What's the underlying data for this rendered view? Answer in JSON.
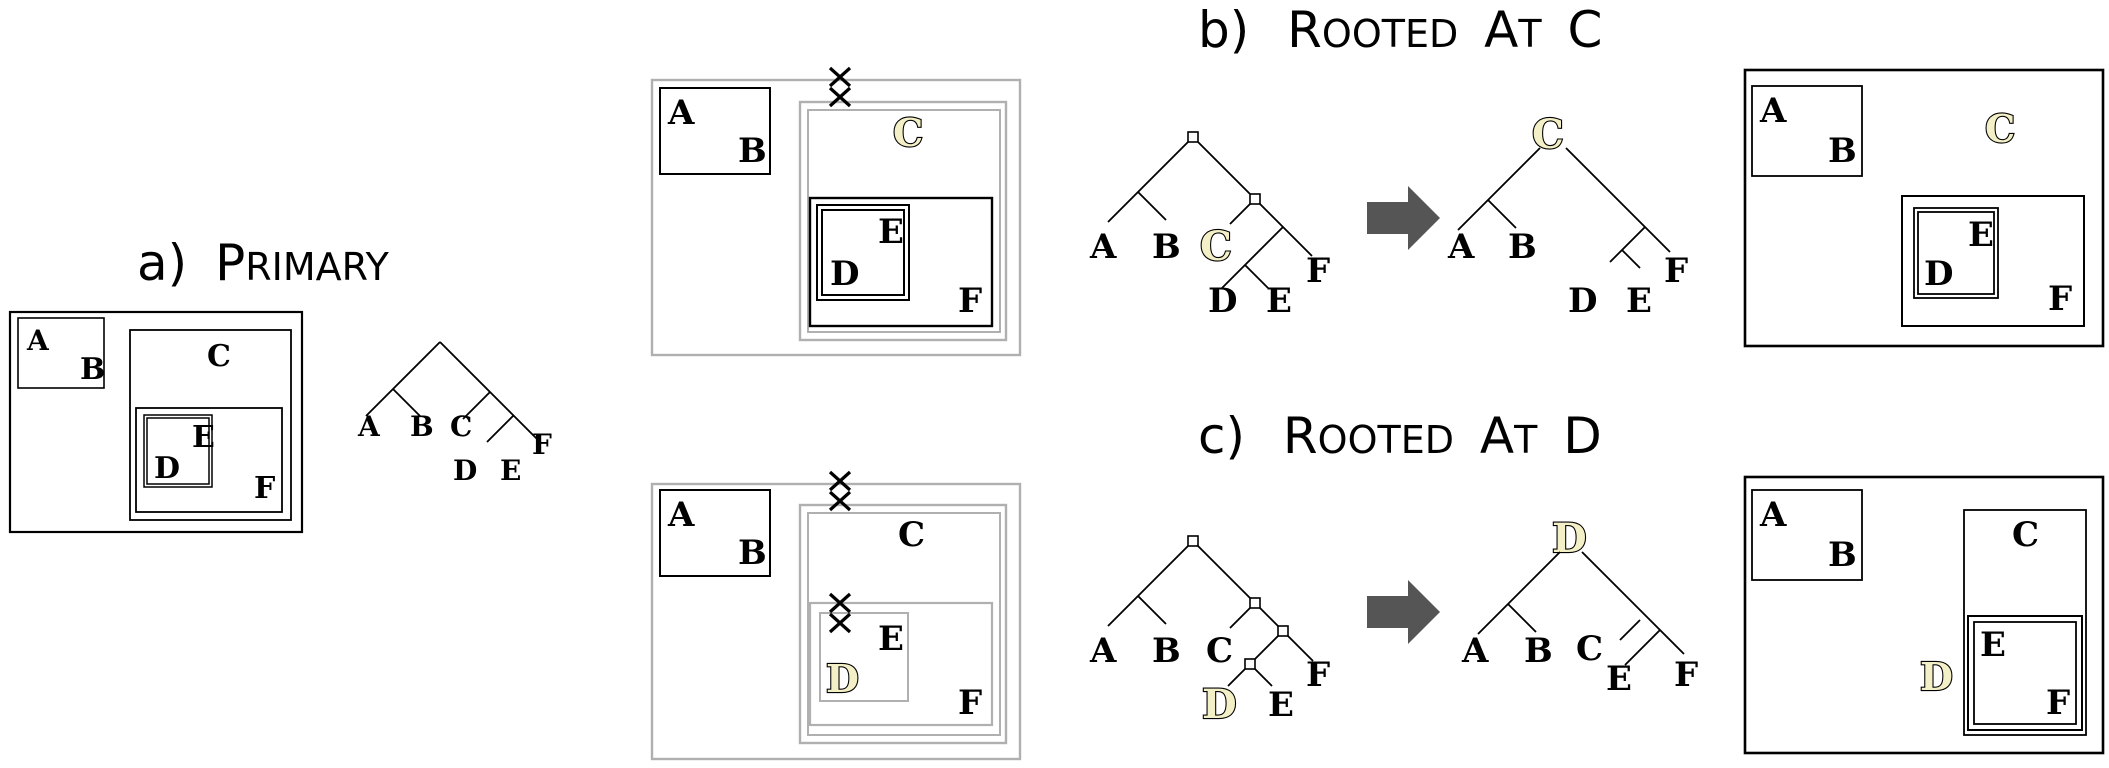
{
  "panels": {
    "a": {
      "letter": "a)",
      "title_cap": "P",
      "title_rest": "RIMARY"
    },
    "b": {
      "letter": "b)",
      "title_cap1": "R",
      "title_rest1": "OOTED",
      "title_cap2": "A",
      "title_rest2": "T",
      "title_root": "C"
    },
    "c": {
      "letter": "c)",
      "title_cap1": "R",
      "title_rest1": "OOTED",
      "title_cap2": "A",
      "title_rest2": "T",
      "title_root": "D"
    }
  },
  "labels": {
    "A": "A",
    "B": "B",
    "C": "C",
    "D": "D",
    "E": "E",
    "F": "F"
  },
  "colors": {
    "highlight_fill": "#f3efc6",
    "grey_box": "#b0b0b0",
    "arrow": "#555555"
  },
  "icons": {
    "cut": "cross-mark",
    "transform": "right-arrow"
  }
}
